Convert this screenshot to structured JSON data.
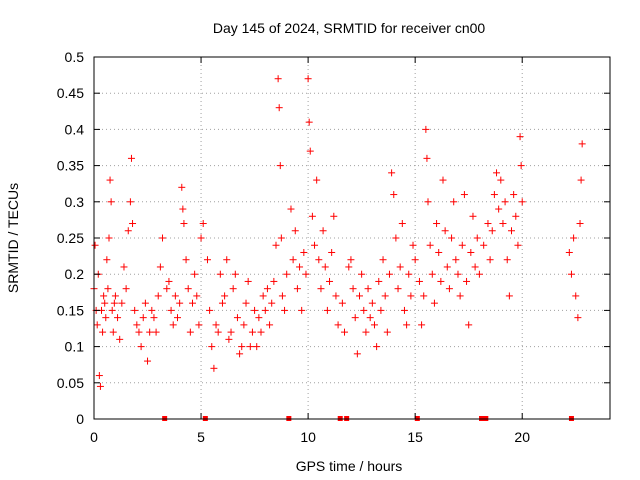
{
  "chart_data": {
    "type": "scatter",
    "title": "Day 145 of 2024, SRMTID for receiver cn00",
    "xlabel": "GPS time / hours",
    "ylabel": "SRMTID / TECUs",
    "xlim": [
      0,
      24.1
    ],
    "ylim": [
      0,
      0.5
    ],
    "x_ticks": [
      0,
      5,
      10,
      15,
      20
    ],
    "x_tick_labels": [
      "0",
      "5",
      "10",
      "15",
      "20"
    ],
    "y_ticks": [
      0,
      0.05,
      0.1,
      0.15,
      0.2,
      0.25,
      0.3,
      0.35,
      0.4,
      0.45,
      0.5
    ],
    "y_tick_labels": [
      "0",
      "0.05",
      "0.1",
      "0.15",
      "0.2",
      "0.25",
      "0.3",
      "0.35",
      "0.4",
      "0.45",
      "0.5"
    ],
    "grid": true,
    "marker": "+",
    "color": "#ff0000",
    "gap_markers_x": [
      3.3,
      5.2,
      9.1,
      11.5,
      11.8,
      15.1,
      18.1,
      18.3,
      22.3
    ],
    "series": [
      {
        "name": "SRMTID",
        "points": [
          [
            0.0,
            0.18
          ],
          [
            0.05,
            0.24
          ],
          [
            0.1,
            0.15
          ],
          [
            0.15,
            0.13
          ],
          [
            0.2,
            0.2
          ],
          [
            0.25,
            0.06
          ],
          [
            0.3,
            0.045
          ],
          [
            0.35,
            0.15
          ],
          [
            0.4,
            0.12
          ],
          [
            0.45,
            0.17
          ],
          [
            0.5,
            0.16
          ],
          [
            0.55,
            0.14
          ],
          [
            0.6,
            0.22
          ],
          [
            0.65,
            0.18
          ],
          [
            0.7,
            0.25
          ],
          [
            0.75,
            0.33
          ],
          [
            0.8,
            0.3
          ],
          [
            0.85,
            0.15
          ],
          [
            0.9,
            0.12
          ],
          [
            0.95,
            0.16
          ],
          [
            1.0,
            0.17
          ],
          [
            1.1,
            0.14
          ],
          [
            1.2,
            0.11
          ],
          [
            1.3,
            0.16
          ],
          [
            1.4,
            0.21
          ],
          [
            1.5,
            0.18
          ],
          [
            1.6,
            0.26
          ],
          [
            1.7,
            0.3
          ],
          [
            1.75,
            0.36
          ],
          [
            1.8,
            0.27
          ],
          [
            1.9,
            0.15
          ],
          [
            2.0,
            0.13
          ],
          [
            2.1,
            0.12
          ],
          [
            2.2,
            0.1
          ],
          [
            2.3,
            0.14
          ],
          [
            2.4,
            0.16
          ],
          [
            2.5,
            0.08
          ],
          [
            2.6,
            0.12
          ],
          [
            2.7,
            0.15
          ],
          [
            2.8,
            0.14
          ],
          [
            2.9,
            0.12
          ],
          [
            3.0,
            0.17
          ],
          [
            3.1,
            0.21
          ],
          [
            3.2,
            0.25
          ],
          [
            3.4,
            0.18
          ],
          [
            3.5,
            0.19
          ],
          [
            3.6,
            0.15
          ],
          [
            3.7,
            0.13
          ],
          [
            3.8,
            0.17
          ],
          [
            3.9,
            0.14
          ],
          [
            4.0,
            0.16
          ],
          [
            4.1,
            0.32
          ],
          [
            4.15,
            0.29
          ],
          [
            4.2,
            0.27
          ],
          [
            4.3,
            0.22
          ],
          [
            4.4,
            0.18
          ],
          [
            4.5,
            0.12
          ],
          [
            4.6,
            0.16
          ],
          [
            4.7,
            0.2
          ],
          [
            4.8,
            0.17
          ],
          [
            4.9,
            0.13
          ],
          [
            5.0,
            0.25
          ],
          [
            5.1,
            0.27
          ],
          [
            5.3,
            0.22
          ],
          [
            5.4,
            0.15
          ],
          [
            5.5,
            0.1
          ],
          [
            5.6,
            0.07
          ],
          [
            5.7,
            0.13
          ],
          [
            5.8,
            0.12
          ],
          [
            5.9,
            0.2
          ],
          [
            6.0,
            0.16
          ],
          [
            6.1,
            0.17
          ],
          [
            6.2,
            0.22
          ],
          [
            6.3,
            0.11
          ],
          [
            6.4,
            0.12
          ],
          [
            6.5,
            0.18
          ],
          [
            6.6,
            0.2
          ],
          [
            6.7,
            0.14
          ],
          [
            6.8,
            0.09
          ],
          [
            6.9,
            0.1
          ],
          [
            7.0,
            0.13
          ],
          [
            7.1,
            0.16
          ],
          [
            7.2,
            0.19
          ],
          [
            7.3,
            0.1
          ],
          [
            7.4,
            0.12
          ],
          [
            7.5,
            0.15
          ],
          [
            7.6,
            0.1
          ],
          [
            7.7,
            0.14
          ],
          [
            7.8,
            0.12
          ],
          [
            7.9,
            0.17
          ],
          [
            8.0,
            0.15
          ],
          [
            8.1,
            0.18
          ],
          [
            8.2,
            0.13
          ],
          [
            8.3,
            0.16
          ],
          [
            8.4,
            0.19
          ],
          [
            8.5,
            0.24
          ],
          [
            8.6,
            0.47
          ],
          [
            8.65,
            0.43
          ],
          [
            8.7,
            0.35
          ],
          [
            8.75,
            0.25
          ],
          [
            8.8,
            0.17
          ],
          [
            8.9,
            0.15
          ],
          [
            9.0,
            0.2
          ],
          [
            9.2,
            0.29
          ],
          [
            9.3,
            0.22
          ],
          [
            9.4,
            0.26
          ],
          [
            9.5,
            0.18
          ],
          [
            9.6,
            0.21
          ],
          [
            9.7,
            0.15
          ],
          [
            9.8,
            0.23
          ],
          [
            9.9,
            0.2
          ],
          [
            10.0,
            0.47
          ],
          [
            10.05,
            0.41
          ],
          [
            10.1,
            0.37
          ],
          [
            10.2,
            0.28
          ],
          [
            10.3,
            0.24
          ],
          [
            10.4,
            0.33
          ],
          [
            10.5,
            0.22
          ],
          [
            10.6,
            0.18
          ],
          [
            10.7,
            0.26
          ],
          [
            10.8,
            0.21
          ],
          [
            10.9,
            0.15
          ],
          [
            11.0,
            0.19
          ],
          [
            11.1,
            0.23
          ],
          [
            11.2,
            0.28
          ],
          [
            11.3,
            0.17
          ],
          [
            11.4,
            0.13
          ],
          [
            11.6,
            0.16
          ],
          [
            11.7,
            0.12
          ],
          [
            11.9,
            0.21
          ],
          [
            12.0,
            0.22
          ],
          [
            12.1,
            0.18
          ],
          [
            12.2,
            0.14
          ],
          [
            12.3,
            0.09
          ],
          [
            12.4,
            0.17
          ],
          [
            12.5,
            0.2
          ],
          [
            12.6,
            0.15
          ],
          [
            12.7,
            0.12
          ],
          [
            12.8,
            0.18
          ],
          [
            12.9,
            0.14
          ],
          [
            13.0,
            0.16
          ],
          [
            13.1,
            0.13
          ],
          [
            13.2,
            0.1
          ],
          [
            13.3,
            0.19
          ],
          [
            13.4,
            0.15
          ],
          [
            13.5,
            0.22
          ],
          [
            13.6,
            0.17
          ],
          [
            13.7,
            0.12
          ],
          [
            13.8,
            0.2
          ],
          [
            13.9,
            0.34
          ],
          [
            14.0,
            0.31
          ],
          [
            14.1,
            0.25
          ],
          [
            14.2,
            0.18
          ],
          [
            14.3,
            0.21
          ],
          [
            14.4,
            0.27
          ],
          [
            14.5,
            0.15
          ],
          [
            14.6,
            0.13
          ],
          [
            14.7,
            0.2
          ],
          [
            14.8,
            0.17
          ],
          [
            14.9,
            0.24
          ],
          [
            15.0,
            0.22
          ],
          [
            15.2,
            0.19
          ],
          [
            15.3,
            0.13
          ],
          [
            15.4,
            0.17
          ],
          [
            15.5,
            0.4
          ],
          [
            15.55,
            0.36
          ],
          [
            15.6,
            0.3
          ],
          [
            15.7,
            0.24
          ],
          [
            15.8,
            0.2
          ],
          [
            15.9,
            0.16
          ],
          [
            16.0,
            0.27
          ],
          [
            16.1,
            0.23
          ],
          [
            16.2,
            0.19
          ],
          [
            16.3,
            0.33
          ],
          [
            16.4,
            0.26
          ],
          [
            16.5,
            0.21
          ],
          [
            16.6,
            0.18
          ],
          [
            16.7,
            0.25
          ],
          [
            16.8,
            0.3
          ],
          [
            16.9,
            0.22
          ],
          [
            17.0,
            0.2
          ],
          [
            17.1,
            0.17
          ],
          [
            17.2,
            0.24
          ],
          [
            17.3,
            0.31
          ],
          [
            17.4,
            0.19
          ],
          [
            17.5,
            0.13
          ],
          [
            17.6,
            0.23
          ],
          [
            17.7,
            0.28
          ],
          [
            17.8,
            0.21
          ],
          [
            17.9,
            0.25
          ],
          [
            18.0,
            0.2
          ],
          [
            18.2,
            0.24
          ],
          [
            18.4,
            0.27
          ],
          [
            18.5,
            0.22
          ],
          [
            18.6,
            0.26
          ],
          [
            18.7,
            0.31
          ],
          [
            18.8,
            0.34
          ],
          [
            18.9,
            0.29
          ],
          [
            19.0,
            0.33
          ],
          [
            19.1,
            0.27
          ],
          [
            19.2,
            0.3
          ],
          [
            19.3,
            0.22
          ],
          [
            19.4,
            0.17
          ],
          [
            19.5,
            0.26
          ],
          [
            19.6,
            0.31
          ],
          [
            19.7,
            0.28
          ],
          [
            19.8,
            0.24
          ],
          [
            19.9,
            0.39
          ],
          [
            19.95,
            0.35
          ],
          [
            20.0,
            0.3
          ],
          [
            22.2,
            0.23
          ],
          [
            22.3,
            0.2
          ],
          [
            22.4,
            0.25
          ],
          [
            22.5,
            0.17
          ],
          [
            22.6,
            0.14
          ],
          [
            22.7,
            0.27
          ],
          [
            22.75,
            0.33
          ],
          [
            22.8,
            0.38
          ]
        ]
      }
    ]
  }
}
